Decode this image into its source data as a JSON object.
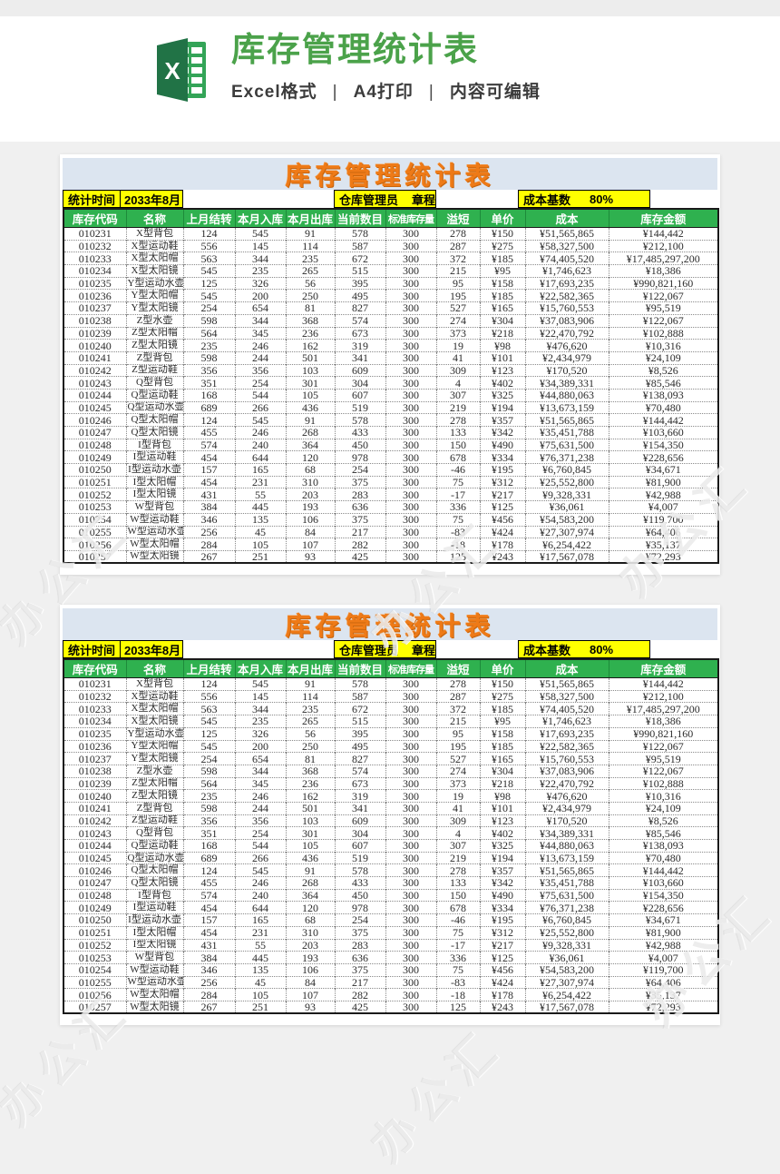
{
  "header": {
    "title": "库存管理统计表",
    "subtitle": [
      "Excel格式",
      "A4打印",
      "内容可编辑"
    ],
    "separator": "|"
  },
  "sheet": {
    "banner_title": "库存管理统计表",
    "info": {
      "stat_label": "统计时间",
      "stat_value": "2033年8月",
      "manager_label": "仓库管理员",
      "manager_value": "章程",
      "cost_label": "成本基数",
      "cost_value": "80%"
    },
    "columns": [
      "库存代码",
      "名称",
      "上月结转",
      "本月入库",
      "本月出库",
      "当前数目",
      "标准库存量",
      "溢短",
      "单价",
      "成本",
      "库存金额"
    ],
    "rows": [
      [
        "010231",
        "X型背包",
        "124",
        "545",
        "91",
        "578",
        "300",
        "278",
        "¥150",
        "¥51,565,865",
        "¥144,442"
      ],
      [
        "010232",
        "X型运动鞋",
        "556",
        "145",
        "114",
        "587",
        "300",
        "287",
        "¥275",
        "¥58,327,500",
        "¥212,100"
      ],
      [
        "010233",
        "X型太阳帽",
        "563",
        "344",
        "235",
        "672",
        "300",
        "372",
        "¥185",
        "¥74,405,520",
        "¥17,485,297,200"
      ],
      [
        "010234",
        "X型太阳镜",
        "545",
        "235",
        "265",
        "515",
        "300",
        "215",
        "¥95",
        "¥1,746,623",
        "¥18,386"
      ],
      [
        "010235",
        "Y型运动水壶",
        "125",
        "326",
        "56",
        "395",
        "300",
        "95",
        "¥158",
        "¥17,693,235",
        "¥990,821,160"
      ],
      [
        "010236",
        "Y型太阳帽",
        "545",
        "200",
        "250",
        "495",
        "300",
        "195",
        "¥185",
        "¥22,582,365",
        "¥122,067"
      ],
      [
        "010237",
        "Y型太阳镜",
        "254",
        "654",
        "81",
        "827",
        "300",
        "527",
        "¥165",
        "¥15,760,553",
        "¥95,519"
      ],
      [
        "010238",
        "Z型水壶",
        "598",
        "344",
        "368",
        "574",
        "300",
        "274",
        "¥304",
        "¥37,083,906",
        "¥122,067"
      ],
      [
        "010239",
        "Z型太阳帽",
        "564",
        "345",
        "236",
        "673",
        "300",
        "373",
        "¥218",
        "¥22,470,792",
        "¥102,888"
      ],
      [
        "010240",
        "Z型太阳镜",
        "235",
        "246",
        "162",
        "319",
        "300",
        "19",
        "¥98",
        "¥476,620",
        "¥10,316"
      ],
      [
        "010241",
        "Z型背包",
        "598",
        "244",
        "501",
        "341",
        "300",
        "41",
        "¥101",
        "¥2,434,979",
        "¥24,109"
      ],
      [
        "010242",
        "Z型运动鞋",
        "356",
        "356",
        "103",
        "609",
        "300",
        "309",
        "¥123",
        "¥170,520",
        "¥8,526"
      ],
      [
        "010243",
        "Q型背包",
        "351",
        "254",
        "301",
        "304",
        "300",
        "4",
        "¥402",
        "¥34,389,331",
        "¥85,546"
      ],
      [
        "010244",
        "Q型运动鞋",
        "168",
        "544",
        "105",
        "607",
        "300",
        "307",
        "¥325",
        "¥44,880,063",
        "¥138,093"
      ],
      [
        "010245",
        "Q型运动水壶",
        "689",
        "266",
        "436",
        "519",
        "300",
        "219",
        "¥194",
        "¥13,673,159",
        "¥70,480"
      ],
      [
        "010246",
        "Q型太阳帽",
        "124",
        "545",
        "91",
        "578",
        "300",
        "278",
        "¥357",
        "¥51,565,865",
        "¥144,442"
      ],
      [
        "010247",
        "Q型太阳镜",
        "455",
        "246",
        "268",
        "433",
        "300",
        "133",
        "¥342",
        "¥35,451,788",
        "¥103,660"
      ],
      [
        "010248",
        "I型背包",
        "574",
        "240",
        "364",
        "450",
        "300",
        "150",
        "¥490",
        "¥75,631,500",
        "¥154,350"
      ],
      [
        "010249",
        "I型运动鞋",
        "454",
        "644",
        "120",
        "978",
        "300",
        "678",
        "¥334",
        "¥76,371,238",
        "¥228,656"
      ],
      [
        "010250",
        "I型运动水壶",
        "157",
        "165",
        "68",
        "254",
        "300",
        "-46",
        "¥195",
        "¥6,760,845",
        "¥34,671"
      ],
      [
        "010251",
        "I型太阳帽",
        "454",
        "231",
        "310",
        "375",
        "300",
        "75",
        "¥312",
        "¥25,552,800",
        "¥81,900"
      ],
      [
        "010252",
        "I型太阳镜",
        "431",
        "55",
        "203",
        "283",
        "300",
        "-17",
        "¥217",
        "¥9,328,331",
        "¥42,988"
      ],
      [
        "010253",
        "W型背包",
        "384",
        "445",
        "193",
        "636",
        "300",
        "336",
        "¥125",
        "¥36,061",
        "¥4,007"
      ],
      [
        "010254",
        "W型运动鞋",
        "346",
        "135",
        "106",
        "375",
        "300",
        "75",
        "¥456",
        "¥54,583,200",
        "¥119,700"
      ],
      [
        "010255",
        "W型运动水壶",
        "256",
        "45",
        "84",
        "217",
        "300",
        "-83",
        "¥424",
        "¥27,307,974",
        "¥64,406"
      ],
      [
        "010256",
        "W型太阳帽",
        "284",
        "105",
        "107",
        "282",
        "300",
        "-18",
        "¥178",
        "¥6,254,422",
        "¥35,137"
      ],
      [
        "010257",
        "W型太阳镜",
        "267",
        "251",
        "93",
        "425",
        "300",
        "125",
        "¥243",
        "¥17,567,078",
        "¥72,293"
      ]
    ]
  },
  "watermark": {
    "text": "办公汇"
  },
  "colors": {
    "brand_green": "#4ba24a",
    "logo_green_dark": "#185c37",
    "logo_green_mid": "#21a366",
    "header_row_green": "#2fb14f",
    "highlight_yellow": "#ffff00",
    "banner_orange": "#ee7a17",
    "banner_bg": "#dce5f0"
  }
}
